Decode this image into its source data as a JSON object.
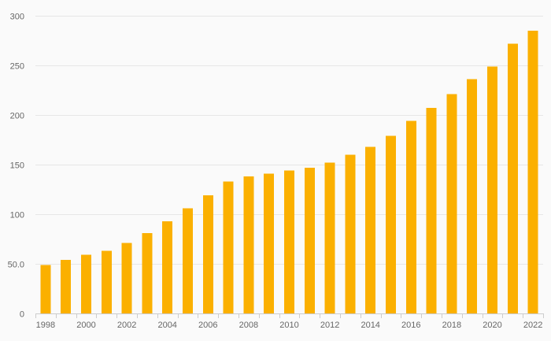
{
  "chart_data": {
    "type": "bar",
    "title": "",
    "xlabel": "",
    "ylabel": "",
    "categories": [
      "1998",
      "1999",
      "2000",
      "2001",
      "2002",
      "2003",
      "2004",
      "2005",
      "2006",
      "2007",
      "2008",
      "2009",
      "2010",
      "2011",
      "2012",
      "2013",
      "2014",
      "2015",
      "2016",
      "2017",
      "2018",
      "2019",
      "2020",
      "2021",
      "2022"
    ],
    "x_tick_labels": [
      "1998",
      "2000",
      "2002",
      "2004",
      "2006",
      "2008",
      "2010",
      "2012",
      "2014",
      "2016",
      "2018",
      "2020",
      "2022"
    ],
    "values": [
      49,
      54,
      59,
      63,
      71,
      81,
      93,
      106,
      119,
      133,
      138,
      141,
      144,
      147,
      152,
      160,
      168,
      179,
      194,
      207,
      221,
      236,
      249,
      272,
      285
    ],
    "ylim": [
      0,
      300
    ],
    "y_ticks": [
      0,
      50,
      100,
      150,
      200,
      250,
      300
    ],
    "y_tick_labels": [
      "0",
      "50.0",
      "100",
      "150",
      "200",
      "250",
      "300"
    ],
    "grid": true,
    "bar_color": "#fbb000"
  }
}
